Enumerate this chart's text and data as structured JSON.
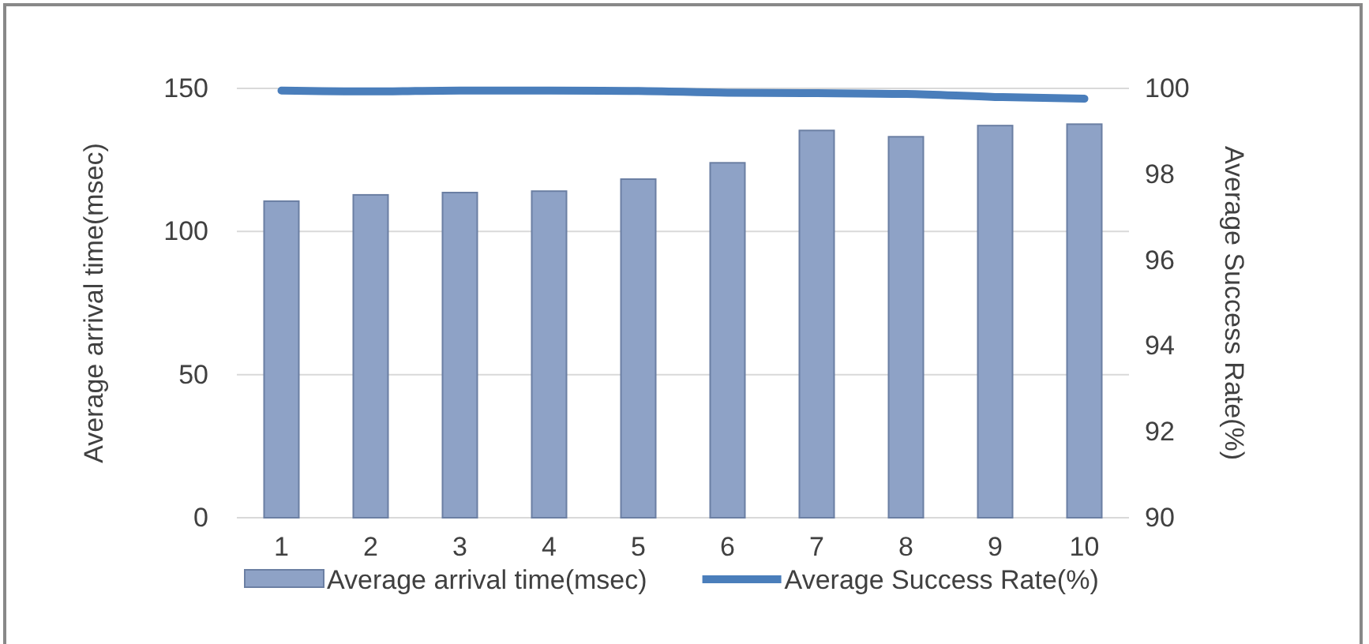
{
  "chart_data": {
    "type": "bar",
    "categories": [
      "1",
      "2",
      "3",
      "4",
      "5",
      "6",
      "7",
      "8",
      "9",
      "10"
    ],
    "series": [
      {
        "name": "Average arrival time(msec)",
        "color": "#8ea2c6",
        "values": [
          110.6,
          112.8,
          113.6,
          114.1,
          118.3,
          124,
          135.3,
          133.1,
          137,
          137.5
        ]
      },
      {
        "name": "Average Success Rate(%)",
        "type": "line",
        "axis": "y2",
        "color": "#4a7ebb",
        "values": [
          99.95,
          99.93,
          99.95,
          99.95,
          99.94,
          99.9,
          99.89,
          99.87,
          99.8,
          99.76
        ]
      }
    ],
    "ylabel": "Average arrival time(msec)",
    "y2label": "Average Success Rate(%)",
    "ylim": [
      0,
      150
    ],
    "yticks": [
      0,
      50,
      100,
      150
    ],
    "y2lim": [
      90,
      100
    ],
    "y2ticks": [
      90,
      92,
      94,
      96,
      98,
      100
    ],
    "grid": "y",
    "legend": "bottom",
    "marker": "none",
    "line_style": "solid"
  }
}
